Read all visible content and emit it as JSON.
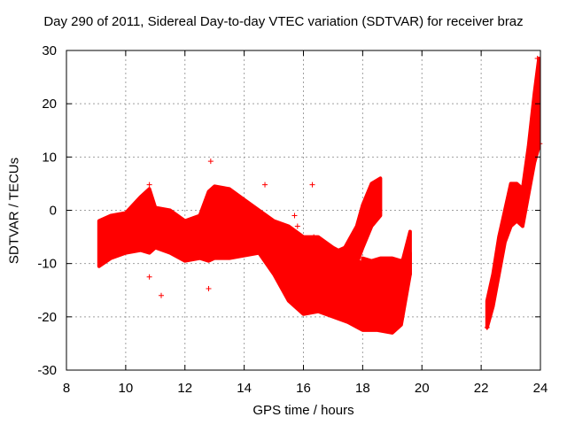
{
  "chart_data": {
    "type": "scatter",
    "title": "Day 290 of 2011, Sidereal Day-to-day VTEC variation (SDTVAR) for receiver braz",
    "xlabel": "GPS time / hours",
    "ylabel": "SDTVAR / TECUs",
    "xlim": [
      8,
      24
    ],
    "ylim": [
      -30,
      30
    ],
    "xticks": [
      8,
      10,
      12,
      14,
      16,
      18,
      20,
      22,
      24
    ],
    "yticks": [
      -30,
      -20,
      -10,
      0,
      10,
      20,
      30
    ],
    "grid": true,
    "marker": "+",
    "series": [
      {
        "name": "SDTVAR",
        "color": "#ff0000",
        "bands": [
          {
            "x": [
              9.1,
              9.5,
              10.0,
              10.5,
              10.8,
              11.0,
              11.5,
              12.0,
              12.5,
              12.8,
              13.0,
              13.5,
              14.0,
              14.5,
              15.0,
              15.5,
              16.0,
              16.5,
              17.0,
              17.5,
              18.0,
              18.5,
              19.0,
              19.3,
              19.6
            ],
            "upper": [
              -2.0,
              -1.0,
              -0.5,
              2.5,
              4.0,
              0.5,
              0.0,
              -2.0,
              -1.0,
              3.5,
              4.5,
              4.0,
              2.0,
              0.0,
              -2.0,
              -3.0,
              -5.0,
              -5.0,
              -7.0,
              -8.5,
              -10.0,
              -10.5,
              -11.5,
              -10.5,
              -4.0
            ],
            "lower": [
              -10.5,
              -9.0,
              -8.0,
              -7.5,
              -8.0,
              -7.0,
              -8.0,
              -9.5,
              -9.0,
              -9.5,
              -9.0,
              -9.0,
              -8.5,
              -8.0,
              -12.0,
              -17.0,
              -19.5,
              -19.0,
              -20.0,
              -21.0,
              -22.5,
              -22.5,
              -23.0,
              -21.5,
              -12.0
            ]
          },
          {
            "x": [
              16.3,
              16.6,
              17.0,
              17.4,
              17.8,
              18.0,
              18.3,
              18.6
            ],
            "upper": [
              -6.0,
              -7.0,
              -8.0,
              -7.0,
              -3.0,
              1.0,
              5.0,
              6.0
            ],
            "lower": [
              -12.0,
              -13.0,
              -13.0,
              -12.5,
              -10.0,
              -7.0,
              -3.0,
              -1.0
            ]
          },
          {
            "x": [
              18.0,
              18.3,
              18.6,
              19.0,
              19.3,
              19.6
            ],
            "upper": [
              -9.0,
              -9.5,
              -9.0,
              -9.0,
              -9.5,
              -8.0
            ],
            "lower": [
              -13.5,
              -15.0,
              -14.5,
              -14.0,
              -14.5,
              -12.0
            ]
          },
          {
            "x": [
              22.2,
              22.4,
              22.6,
              22.8,
              23.0,
              23.2,
              23.4,
              23.6,
              23.8,
              23.95
            ],
            "upper": [
              -17.0,
              -12.0,
              -5.0,
              0.0,
              5.0,
              5.0,
              4.0,
              12.0,
              22.0,
              28.5
            ],
            "lower": [
              -22.0,
              -18.0,
              -12.0,
              -6.0,
              -3.0,
              -2.0,
              -3.0,
              3.0,
              9.0,
              12.0
            ]
          }
        ],
        "points": [
          {
            "x": 10.8,
            "y": 4.8
          },
          {
            "x": 10.8,
            "y": -12.5
          },
          {
            "x": 11.2,
            "y": -16.0
          },
          {
            "x": 12.8,
            "y": -14.7
          },
          {
            "x": 12.87,
            "y": 9.2
          },
          {
            "x": 16.3,
            "y": 4.8
          },
          {
            "x": 16.35,
            "y": -5.0
          },
          {
            "x": 22.2,
            "y": -22.0
          },
          {
            "x": 23.9,
            "y": 28.5
          },
          {
            "x": 23.9,
            "y": 24.0
          },
          {
            "x": 23.98,
            "y": 12.5
          },
          {
            "x": 14.7,
            "y": 4.8
          },
          {
            "x": 15.7,
            "y": -1.0
          },
          {
            "x": 15.8,
            "y": -3.0
          }
        ]
      }
    ]
  }
}
